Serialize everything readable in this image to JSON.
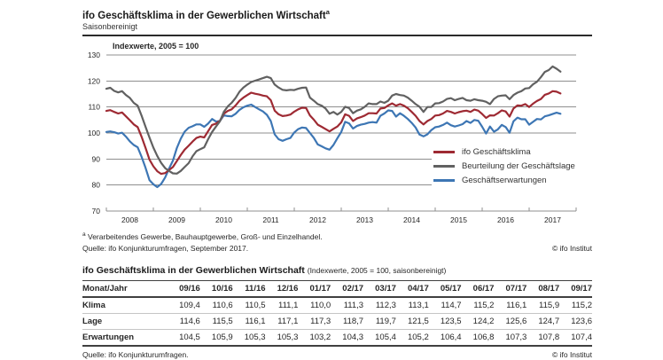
{
  "header": {
    "title": "ifo Geschäftsklima in der Gewerblichen Wirtschaft",
    "title_sup": "a",
    "subtitle": "Saisonbereinigt"
  },
  "chart": {
    "axis_label": "Indexwerte, 2005 = 100",
    "y_ticks": [
      130,
      120,
      110,
      100,
      90,
      80,
      70
    ],
    "x_labels": [
      "2008",
      "2009",
      "2010",
      "2011",
      "2012",
      "2013",
      "2014",
      "2015",
      "2016",
      "2017"
    ],
    "gridline_color": "#8f8f8f",
    "text_color": "#262626"
  },
  "chart_data": {
    "type": "line",
    "title": "ifo Geschäftsklima in der Gewerblichen Wirtschaft (Indexwerte, 2005 = 100, saisonbereinigt)",
    "x_unit": "month",
    "x_start": "2008-01",
    "x_end": "2017-09",
    "x_axis_span_months": 120,
    "ylim": [
      70,
      130
    ],
    "grid": true,
    "legend_position": "right-inside",
    "series": [
      {
        "name": "ifo Geschäftsklima",
        "color": "#9e2a33",
        "values": [
          108.5,
          108.8,
          108.1,
          107.5,
          107.9,
          106.4,
          104.9,
          103.3,
          102.3,
          98.5,
          94.3,
          89.8,
          87.2,
          85.3,
          84.3,
          84.6,
          85.8,
          86.9,
          89.2,
          91.5,
          93.6,
          95.1,
          96.7,
          98.1,
          98.6,
          98.3,
          100.7,
          103.1,
          103.6,
          104.7,
          107.4,
          108.5,
          109.1,
          110.6,
          112.4,
          113.6,
          114.6,
          115.5,
          115.1,
          114.8,
          114.4,
          114.1,
          112.6,
          108.6,
          107.2,
          106.5,
          106.7,
          107.1,
          108.2,
          109.1,
          109.7,
          109.6,
          106.7,
          105.1,
          103.2,
          102.4,
          101.5,
          100.6,
          101.6,
          102.5,
          104.1,
          107.2,
          106.6,
          104.6,
          105.6,
          106.1,
          106.7,
          107.6,
          107.6,
          107.5,
          109.4,
          109.6,
          110.6,
          111.4,
          110.5,
          111.1,
          110.5,
          109.5,
          108.1,
          106.6,
          104.6,
          103.3,
          104.6,
          105.4,
          106.7,
          106.9,
          107.5,
          108.5,
          108.1,
          107.5,
          108.0,
          108.4,
          108.6,
          108.1,
          109.0,
          108.6,
          107.3,
          105.8,
          106.8,
          106.7,
          107.6,
          108.7,
          108.3,
          106.3,
          109.4,
          110.6,
          110.5,
          111.1,
          110.0,
          111.3,
          112.3,
          113.1,
          114.7,
          115.2,
          116.1,
          115.9,
          115.2
        ]
      },
      {
        "name": "Beurteilung der Geschäftslage",
        "color": "#616161",
        "values": [
          117.0,
          117.4,
          116.2,
          115.6,
          116.1,
          114.6,
          113.5,
          111.6,
          110.5,
          106.6,
          102.4,
          98.3,
          94.4,
          91.2,
          88.5,
          86.5,
          85.4,
          84.5,
          84.4,
          85.4,
          86.9,
          88.4,
          91.0,
          93.0,
          93.8,
          94.5,
          97.6,
          100.4,
          102.5,
          104.5,
          108.1,
          110.2,
          111.6,
          113.5,
          115.9,
          117.5,
          118.6,
          119.6,
          120.1,
          120.6,
          121.1,
          121.6,
          121.1,
          118.6,
          117.5,
          116.6,
          116.4,
          116.6,
          116.5,
          117.0,
          117.4,
          117.5,
          113.6,
          112.4,
          111.1,
          110.5,
          109.4,
          107.4,
          108.1,
          107.1,
          108.1,
          110.1,
          109.6,
          107.6,
          108.6,
          109.1,
          110.1,
          111.4,
          111.1,
          111.1,
          112.1,
          111.6,
          112.4,
          114.4,
          115.0,
          114.6,
          114.4,
          113.6,
          112.4,
          111.1,
          110.1,
          108.1,
          110.0,
          110.0,
          111.4,
          111.5,
          112.1,
          113.1,
          113.4,
          112.6,
          113.1,
          113.5,
          112.6,
          112.4,
          113.0,
          112.6,
          112.4,
          112.0,
          111.1,
          113.1,
          114.1,
          114.4,
          114.5,
          113.0,
          114.6,
          115.5,
          116.1,
          117.1,
          117.3,
          118.7,
          119.7,
          121.5,
          123.5,
          124.2,
          125.6,
          124.7,
          123.6
        ]
      },
      {
        "name": "Geschäftserwartungen",
        "color": "#3d76b4",
        "values": [
          100.4,
          100.6,
          100.3,
          99.8,
          100.1,
          98.6,
          96.8,
          95.4,
          94.5,
          90.8,
          86.6,
          81.9,
          80.3,
          79.2,
          80.4,
          82.9,
          86.3,
          89.4,
          94.2,
          97.8,
          100.5,
          102.0,
          102.6,
          103.3,
          103.3,
          102.4,
          103.6,
          105.4,
          104.4,
          104.6,
          106.8,
          106.5,
          106.4,
          107.4,
          108.9,
          109.9,
          110.5,
          110.9,
          110.0,
          109.1,
          108.3,
          107.0,
          104.6,
          99.5,
          97.6,
          97.0,
          97.6,
          98.1,
          100.2,
          101.5,
          102.1,
          101.9,
          100.0,
          98.1,
          95.6,
          94.9,
          94.1,
          93.6,
          95.4,
          98.0,
          100.4,
          104.3,
          103.7,
          101.7,
          102.7,
          103.2,
          103.5,
          104.0,
          104.2,
          104.0,
          106.6,
          107.5,
          108.7,
          108.5,
          106.3,
          107.6,
          106.6,
          105.4,
          103.9,
          102.1,
          99.4,
          98.7,
          99.5,
          101.1,
          102.2,
          102.5,
          103.1,
          104.0,
          103.0,
          102.5,
          102.9,
          103.4,
          104.6,
          103.9,
          105.0,
          104.7,
          102.4,
          99.8,
          102.5,
          100.5,
          101.4,
          103.1,
          102.3,
          100.1,
          104.5,
          105.9,
          105.3,
          105.3,
          103.2,
          104.3,
          105.4,
          105.2,
          106.4,
          106.8,
          107.3,
          107.8,
          107.4
        ]
      }
    ]
  },
  "footnotes": {
    "note_marker": "a",
    "note_text": "Verarbeitendes Gewerbe, Bauhauptgewerbe, Groß- und Einzelhandel.",
    "source": "Quelle: ifo Konjunkturumfragen, September 2017.",
    "copyright": "© ifo Institut"
  },
  "table": {
    "title": "ifo Geschäftsklima in der Gewerblichen Wirtschaft",
    "title_note": "(Indexwerte, 2005 = 100, saisonbereinigt)",
    "header": [
      "Monat/Jahr",
      "09/16",
      "10/16",
      "11/16",
      "12/16",
      "01/17",
      "02/17",
      "03/17",
      "04/17",
      "05/17",
      "06/17",
      "07/17",
      "08/17",
      "09/17"
    ],
    "rows": [
      {
        "label": "Klima",
        "values": [
          "109,4",
          "110,6",
          "110,5",
          "111,1",
          "110,0",
          "111,3",
          "112,3",
          "113,1",
          "114,7",
          "115,2",
          "116,1",
          "115,9",
          "115,2"
        ]
      },
      {
        "label": "Lage",
        "values": [
          "114,6",
          "115,5",
          "116,1",
          "117,1",
          "117,3",
          "118,7",
          "119,7",
          "121,5",
          "123,5",
          "124,2",
          "125,6",
          "124,7",
          "123,6"
        ]
      },
      {
        "label": "Erwartungen",
        "values": [
          "104,5",
          "105,9",
          "105,3",
          "105,3",
          "103,2",
          "104,3",
          "105,4",
          "105,2",
          "106,4",
          "106,8",
          "107,3",
          "107,8",
          "107,4"
        ]
      }
    ],
    "source": "Quelle: ifo Konjunkturumfragen.",
    "copyright": "© ifo Institut"
  }
}
